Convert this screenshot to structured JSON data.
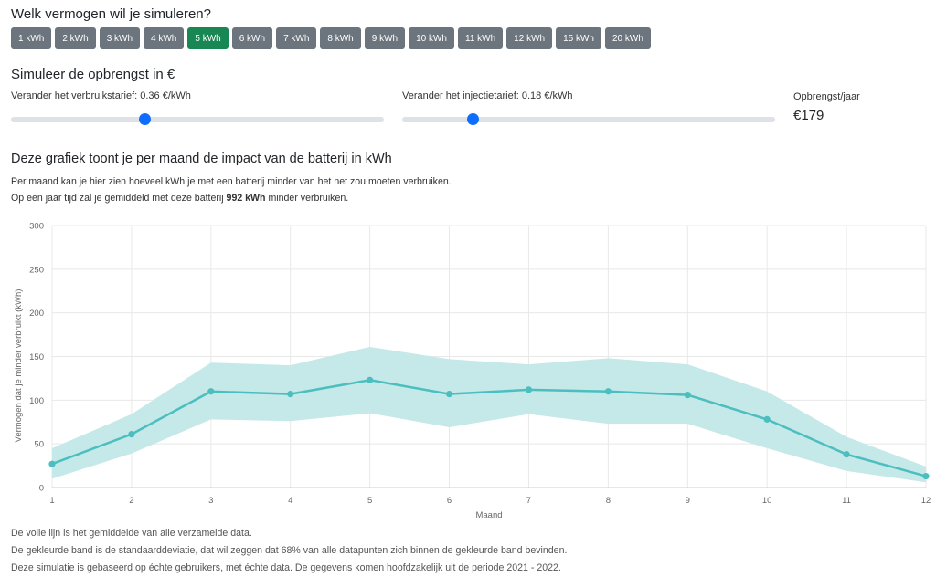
{
  "question": "Welk vermogen wil je simuleren?",
  "capacities": [
    "1 kWh",
    "2 kWh",
    "3 kWh",
    "4 kWh",
    "5 kWh",
    "6 kWh",
    "7 kWh",
    "8 kWh",
    "9 kWh",
    "10 kWh",
    "11 kWh",
    "12 kWh",
    "15 kWh",
    "20 kWh"
  ],
  "selected_capacity": "5 kWh",
  "simulate_title": "Simuleer de opbrengst in €",
  "consumption": {
    "prefix": "Verander het ",
    "link": "verbruikstarief",
    "suffix": ": 0.36 €/kWh",
    "value": 0.36,
    "fraction": 0.36
  },
  "injection": {
    "prefix": "Verander het ",
    "link": "injectietarief",
    "suffix": ": 0.18 €/kWh",
    "value": 0.18,
    "fraction": 0.19
  },
  "yield": {
    "label": "Opbrengst/jaar",
    "value": "€179"
  },
  "chart_heading": "Deze grafiek toont je per maand de impact van de batterij in kWh",
  "desc1": "Per maand kan je hier zien hoeveel kWh je met een batterij minder van het net zou moeten verbruiken.",
  "desc2": {
    "pre": "Op een jaar tijd zal je gemiddeld met deze batterij ",
    "bold": "992 kWh",
    "post": " minder verbruiken."
  },
  "chart_data": {
    "type": "line",
    "xlabel": "Maand",
    "ylabel": "Vermogen dat je minder verbruikt (kWh)",
    "x": [
      1,
      2,
      3,
      4,
      5,
      6,
      7,
      8,
      9,
      10,
      11,
      12
    ],
    "series": [
      {
        "values": [
          27,
          61,
          110,
          107,
          123,
          107,
          112,
          110,
          106,
          78,
          38,
          13
        ]
      }
    ],
    "band_upper": [
      45,
      84,
      143,
      140,
      161,
      147,
      141,
      148,
      141,
      110,
      58,
      24
    ],
    "band_lower": [
      10,
      39,
      78,
      76,
      85,
      69,
      84,
      73,
      73,
      45,
      19,
      6
    ],
    "ylim": [
      0,
      300
    ],
    "yticks": [
      0,
      50,
      100,
      150,
      200,
      250,
      300
    ],
    "xlim": [
      1,
      12
    ],
    "grid": true,
    "colors": {
      "line": "#4bbfbf",
      "band": "#c5e8e8",
      "grid": "#e8e8e8"
    }
  },
  "footer": [
    "De volle lijn is het gemiddelde van alle verzamelde data.",
    "De gekleurde band is de standaarddeviatie, dat wil zeggen dat 68% van alle datapunten zich binnen de gekleurde band bevinden.",
    "Deze simulatie is gebaseerd op échte gebruikers, met échte data. De gegevens komen hoofdzakelijk uit de periode 2021 - 2022."
  ]
}
